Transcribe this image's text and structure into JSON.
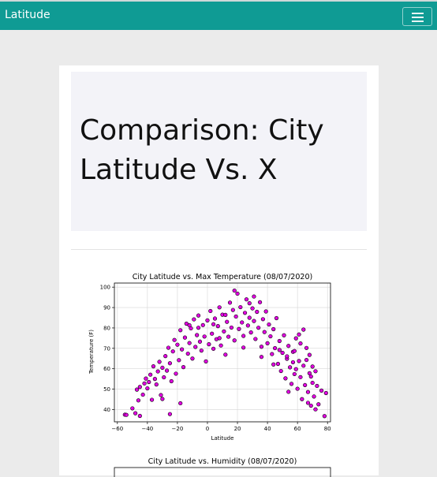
{
  "navbar": {
    "brand": "Latitude"
  },
  "jumbotron": {
    "title": "Comparison: City Latitude Vs. X"
  },
  "chart_data": [
    {
      "type": "scatter",
      "title": "City Latitude vs. Max Temperature (08/07/2020)",
      "xlabel": "Latitude",
      "ylabel": "Temperature (F)",
      "xlim": [
        -62,
        82
      ],
      "ylim": [
        34,
        102
      ],
      "xticks": [
        -60,
        -40,
        -20,
        0,
        20,
        40,
        60,
        80
      ],
      "yticks": [
        40,
        50,
        60,
        70,
        80,
        90,
        100
      ],
      "grid": true,
      "marker_color": "#e000e0",
      "marker_edge": "#000000",
      "points": [
        [
          -55,
          37.5
        ],
        [
          -54,
          37.4
        ],
        [
          -48,
          38.2
        ],
        [
          -47,
          49.8
        ],
        [
          -46,
          44.5
        ],
        [
          -45,
          51.1
        ],
        [
          -43,
          47.3
        ],
        [
          -42,
          52.8
        ],
        [
          -41,
          55.2
        ],
        [
          -40,
          50.4
        ],
        [
          -39,
          53.5
        ],
        [
          -38,
          57.1
        ],
        [
          -37,
          44.8
        ],
        [
          -36,
          61.2
        ],
        [
          -35,
          55.0
        ],
        [
          -34,
          52.3
        ],
        [
          -33,
          58.7
        ],
        [
          -32,
          63.4
        ],
        [
          -31,
          47.1
        ],
        [
          -30,
          60.5
        ],
        [
          -29,
          55.8
        ],
        [
          -28,
          66.2
        ],
        [
          -27,
          59.1
        ],
        [
          -26,
          70.3
        ],
        [
          -25,
          62.7
        ],
        [
          -24,
          53.9
        ],
        [
          -23,
          68.5
        ],
        [
          -22,
          74.1
        ],
        [
          -21,
          57.6
        ],
        [
          -20,
          71.8
        ],
        [
          -19,
          64.2
        ],
        [
          -18,
          78.9
        ],
        [
          -17,
          69.5
        ],
        [
          -16,
          60.8
        ],
        [
          -15,
          75.3
        ],
        [
          -14,
          82.1
        ],
        [
          -13,
          67.4
        ],
        [
          -12,
          72.6
        ],
        [
          -11,
          79.8
        ],
        [
          -10,
          65.0
        ],
        [
          -9,
          84.2
        ],
        [
          -8,
          70.7
        ],
        [
          -7,
          76.5
        ],
        [
          -6,
          86.1
        ],
        [
          -5,
          73.3
        ],
        [
          -4,
          68.9
        ],
        [
          -3,
          81.4
        ],
        [
          -2,
          75.8
        ],
        [
          -1,
          63.6
        ],
        [
          0,
          83.7
        ],
        [
          1,
          72.0
        ],
        [
          2,
          88.3
        ],
        [
          3,
          77.2
        ],
        [
          4,
          69.8
        ],
        [
          5,
          84.6
        ],
        [
          6,
          74.5
        ],
        [
          7,
          80.9
        ],
        [
          8,
          90.1
        ],
        [
          9,
          71.4
        ],
        [
          10,
          86.5
        ],
        [
          11,
          78.3
        ],
        [
          12,
          66.9
        ],
        [
          13,
          83.0
        ],
        [
          14,
          75.7
        ],
        [
          15,
          92.4
        ],
        [
          16,
          80.2
        ],
        [
          17,
          88.8
        ],
        [
          18,
          73.9
        ],
        [
          19,
          85.6
        ],
        [
          20,
          96.8
        ],
        [
          21,
          79.5
        ],
        [
          22,
          90.2
        ],
        [
          23,
          82.7
        ],
        [
          24,
          76.1
        ],
        [
          25,
          87.4
        ],
        [
          26,
          94.0
        ],
        [
          27,
          81.2
        ],
        [
          28,
          85.0
        ],
        [
          29,
          77.8
        ],
        [
          30,
          89.6
        ],
        [
          31,
          83.4
        ],
        [
          32,
          74.6
        ],
        [
          33,
          87.9
        ],
        [
          34,
          80.1
        ],
        [
          35,
          92.6
        ],
        [
          36,
          70.8
        ],
        [
          37,
          84.3
        ],
        [
          38,
          78.0
        ],
        [
          39,
          88.1
        ],
        [
          40,
          72.5
        ],
        [
          41,
          81.7
        ],
        [
          42,
          75.9
        ],
        [
          43,
          67.2
        ],
        [
          44,
          79.4
        ],
        [
          45,
          70.1
        ],
        [
          46,
          84.8
        ],
        [
          47,
          62.4
        ],
        [
          48,
          73.6
        ],
        [
          49,
          58.9
        ],
        [
          50,
          67.8
        ],
        [
          51,
          76.4
        ],
        [
          52,
          55.3
        ],
        [
          53,
          64.9
        ],
        [
          54,
          71.2
        ],
        [
          55,
          60.7
        ],
        [
          56,
          52.6
        ],
        [
          57,
          68.3
        ],
        [
          58,
          57.4
        ],
        [
          59,
          74.9
        ],
        [
          60,
          50.2
        ],
        [
          61,
          63.8
        ],
        [
          62,
          55.9
        ],
        [
          63,
          45.1
        ],
        [
          64,
          61.5
        ],
        [
          65,
          52.0
        ],
        [
          66,
          70.2
        ],
        [
          67,
          48.6
        ],
        [
          68,
          57.8
        ],
        [
          69,
          41.9
        ],
        [
          70,
          53.1
        ],
        [
          71,
          46.4
        ],
        [
          72,
          58.8
        ],
        [
          74,
          42.6
        ],
        [
          76,
          49.3
        ],
        [
          78,
          36.8
        ],
        [
          79,
          48.1
        ],
        [
          -50,
          40.6
        ],
        [
          -45,
          36.9
        ],
        [
          -30,
          45.2
        ],
        [
          -25,
          37.8
        ],
        [
          -18,
          43.1
        ],
        [
          12,
          86.4
        ],
        [
          18,
          98.3
        ],
        [
          28,
          92.1
        ],
        [
          31,
          95.4
        ],
        [
          53,
          66.1
        ],
        [
          58,
          68.7
        ],
        [
          61,
          76.8
        ],
        [
          64,
          79.2
        ],
        [
          66,
          64.3
        ],
        [
          69,
          56.2
        ],
        [
          70,
          61.1
        ],
        [
          72,
          40.1
        ],
        [
          73,
          51.6
        ],
        [
          -12,
          81.3
        ],
        [
          -6,
          80.1
        ],
        [
          4,
          81.8
        ],
        [
          8,
          75.0
        ],
        [
          24,
          70.4
        ],
        [
          36,
          65.8
        ],
        [
          44,
          62.1
        ],
        [
          48,
          69.2
        ],
        [
          54,
          48.7
        ],
        [
          57,
          63.2
        ],
        [
          59,
          59.8
        ],
        [
          62,
          72.4
        ],
        [
          67,
          43.3
        ],
        [
          68,
          66.8
        ]
      ]
    },
    {
      "type": "scatter",
      "title": "City Latitude vs. Humidity (08/07/2020)"
    }
  ]
}
